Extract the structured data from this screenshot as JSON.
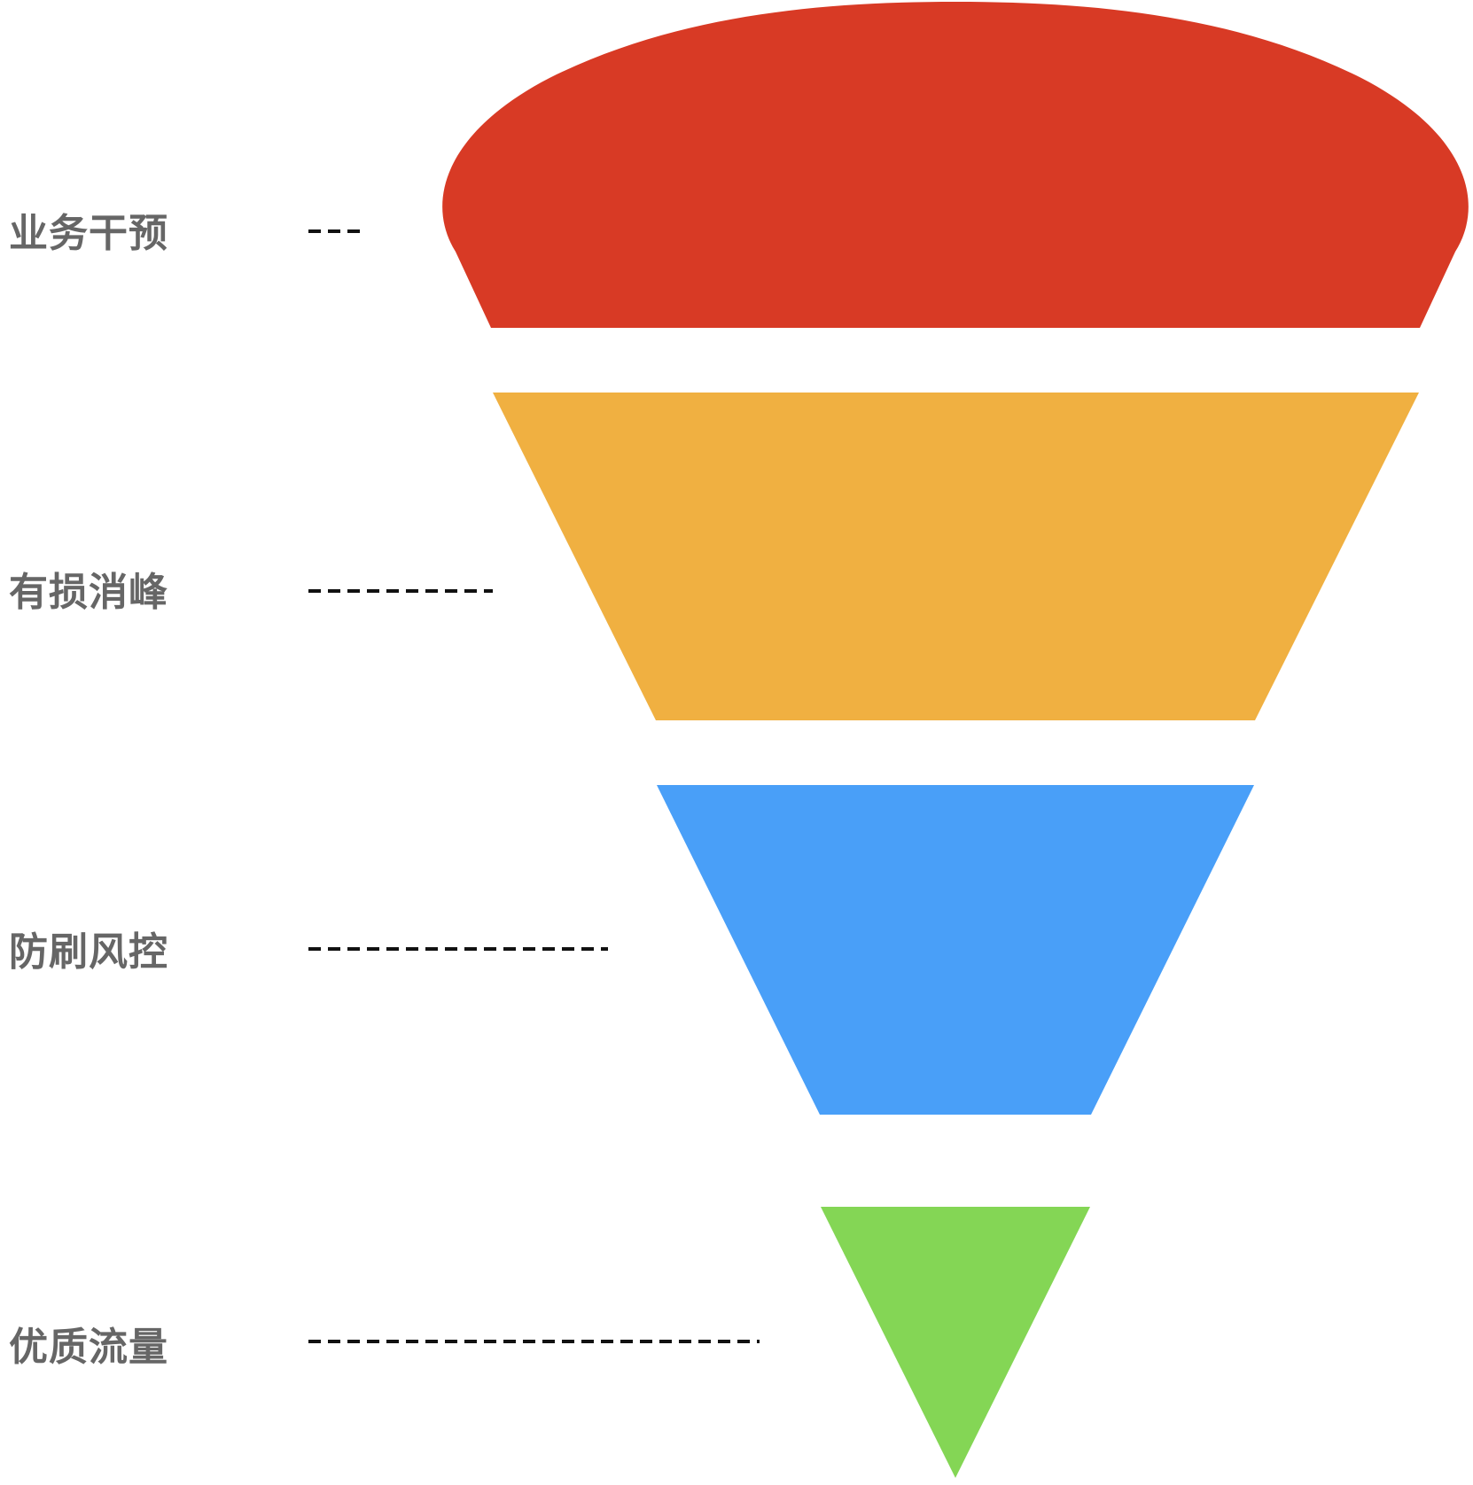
{
  "funnel": {
    "layers": [
      {
        "label": "业务干预",
        "color": "#D83A25"
      },
      {
        "label": "有损消峰",
        "color": "#F0B041"
      },
      {
        "label": "防刷风控",
        "color": "#499FF8"
      },
      {
        "label": "优质流量",
        "color": "#84D655"
      }
    ],
    "connector_color": "#111111",
    "label_color": "#666666"
  }
}
